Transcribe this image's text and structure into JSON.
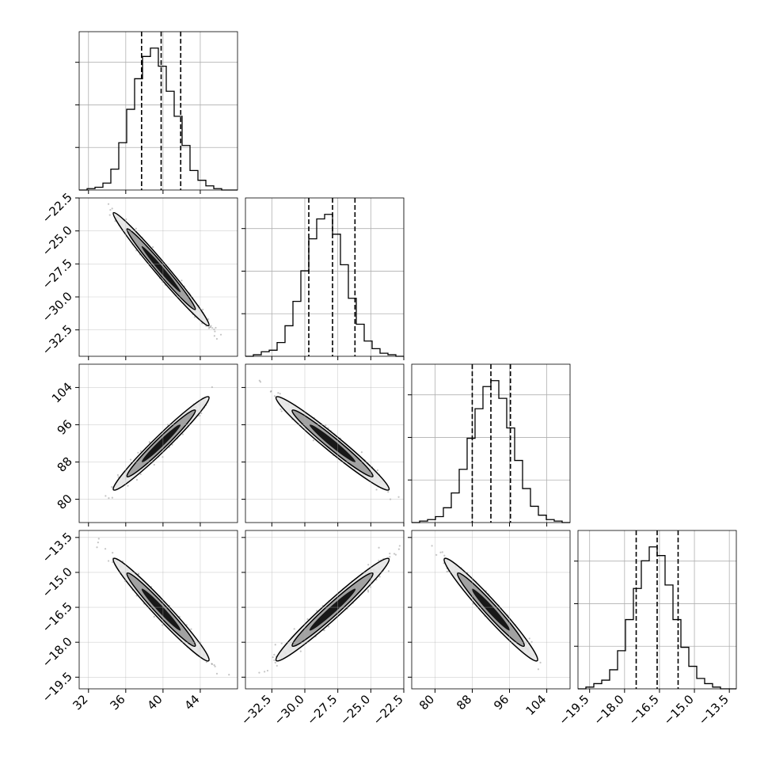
{
  "chart_data": {
    "type": "corner",
    "title": "",
    "grid": true,
    "contour_levels": 3,
    "quantile_lines": [
      0.16,
      0.5,
      0.84
    ],
    "colors": {
      "line": "#000000",
      "grid": "#b0b0b0",
      "points": "#7f7f7f",
      "contour_fill_light": "#e6e6e6",
      "contour_fill_mid": "#9a9a9a",
      "contour_fill_dark": "#000000"
    },
    "parameters": [
      {
        "range": [
          31.0,
          48.0
        ],
        "ticks": [
          "32",
          "36",
          "40",
          "44"
        ],
        "tick_values": [
          32,
          36,
          40,
          44
        ],
        "quantiles": [
          37.7,
          39.8,
          41.9
        ],
        "hist_edges": [
          31.0,
          48.0
        ],
        "hist_counts": [
          0,
          1,
          2,
          5,
          15,
          34,
          58,
          80,
          96,
          102,
          89,
          71,
          53,
          32,
          14,
          7,
          3,
          1,
          0,
          0
        ]
      },
      {
        "range": [
          -34.5,
          -22.5
        ],
        "ticks": [
          "-32.5",
          "-30.0",
          "-27.5",
          "-25.0",
          "-22.5"
        ],
        "tick_values": [
          -32.5,
          -30.0,
          -27.5,
          -25.0,
          -22.5
        ],
        "quantiles": [
          -29.7,
          -27.9,
          -26.2
        ],
        "hist_edges": [
          -34.5,
          -22.5
        ],
        "hist_counts": [
          0,
          1,
          3,
          4,
          9,
          20,
          36,
          56,
          77,
          90,
          93,
          80,
          60,
          38,
          21,
          10,
          5,
          2,
          1,
          0
        ]
      },
      {
        "range": [
          75.0,
          109.0
        ],
        "ticks": [
          "80",
          "88",
          "96",
          "104"
        ],
        "tick_values": [
          80,
          88,
          96,
          104
        ],
        "quantiles": [
          88.0,
          92.0,
          96.2
        ],
        "hist_edges": [
          75.0,
          109.0
        ],
        "hist_counts": [
          0,
          1,
          2,
          4,
          10,
          20,
          36,
          57,
          77,
          92,
          96,
          84,
          64,
          42,
          23,
          11,
          5,
          2,
          1,
          0
        ]
      },
      {
        "range": [
          -20.0,
          -13.2
        ],
        "ticks": [
          "-19.5",
          "-18.0",
          "-16.5",
          "-15.0",
          "-13.5"
        ],
        "tick_values": [
          -19.5,
          -18.0,
          -16.5,
          -15.0,
          -13.5
        ],
        "quantiles": [
          -17.5,
          -16.6,
          -15.7
        ],
        "hist_edges": [
          -20.0,
          -13.2
        ],
        "hist_counts": [
          0,
          1,
          3,
          5,
          11,
          22,
          40,
          58,
          74,
          82,
          77,
          60,
          40,
          24,
          13,
          6,
          3,
          1,
          0,
          0
        ]
      }
    ],
    "pairs": [
      {
        "x": 0,
        "y": 1,
        "corr": -0.985
      },
      {
        "x": 0,
        "y": 2,
        "corr": 0.975
      },
      {
        "x": 1,
        "y": 2,
        "corr": -0.975
      },
      {
        "x": 0,
        "y": 3,
        "corr": -0.975
      },
      {
        "x": 1,
        "y": 3,
        "corr": 0.975
      },
      {
        "x": 2,
        "y": 3,
        "corr": -0.972
      }
    ]
  }
}
